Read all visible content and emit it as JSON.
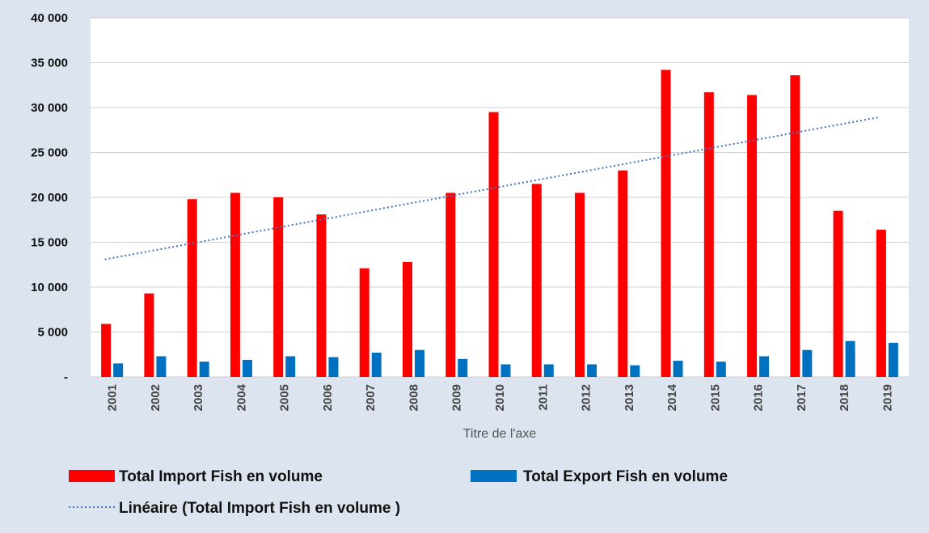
{
  "chart_data": {
    "type": "bar",
    "title": "",
    "xlabel": "Titre de l'axe",
    "ylabel": "",
    "ylim": [
      0,
      40000
    ],
    "y_ticks": [
      0,
      5000,
      10000,
      15000,
      20000,
      25000,
      30000,
      35000,
      40000
    ],
    "y_tick_labels": [
      "-",
      "5 000",
      "10 000",
      "15 000",
      "20 000",
      "25 000",
      "30 000",
      "35 000",
      "40 000"
    ],
    "grid": true,
    "legend_position": "bottom",
    "categories": [
      "2001",
      "2002",
      "2003",
      "2004",
      "2005",
      "2006",
      "2007",
      "2008",
      "2009",
      "2010",
      "2011",
      "2012",
      "2013",
      "2014",
      "2015",
      "2016",
      "2017",
      "2018",
      "2019"
    ],
    "series": [
      {
        "name": "Total Import Fish en volume",
        "color": "#ff0000",
        "values": [
          5900,
          9300,
          19800,
          20500,
          20000,
          18100,
          12100,
          12800,
          20500,
          29500,
          21500,
          20500,
          23000,
          34200,
          31700,
          31400,
          33600,
          18500,
          16400
        ]
      },
      {
        "name": "Total Export Fish en volume",
        "color": "#0070c0",
        "values": [
          1500,
          2300,
          1700,
          1900,
          2300,
          2200,
          2700,
          3000,
          2000,
          1400,
          1400,
          1400,
          1300,
          1800,
          1700,
          2300,
          3000,
          4000,
          3800
        ]
      }
    ],
    "trendline": {
      "name": "Linéaire (Total Import Fish en volume )",
      "type": "linear",
      "color": "#4472c4",
      "style": "dotted"
    }
  }
}
